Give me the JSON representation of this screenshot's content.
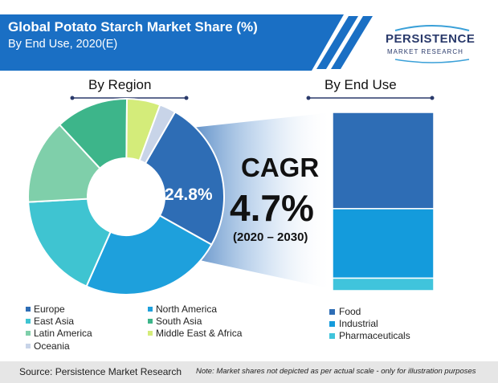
{
  "header": {
    "title": "Global Potato Starch Market Share (%)",
    "subtitle": "By End Use, 2020(E)"
  },
  "logo": {
    "name": "PERSISTENCE",
    "tagline": "MARKET RESEARCH"
  },
  "sections": {
    "region_label": "By Region",
    "enduse_label": "By End Use"
  },
  "cagr": {
    "title": "CAGR",
    "value": "4.7%",
    "period": "(2020 – 2030)"
  },
  "highlight_label": "24.8%",
  "footer": {
    "source": "Source: Persistence Market Research",
    "note": "Note: Market shares not depicted as per actual scale - only for illustration purposes"
  },
  "colors": {
    "banner": "#1a6fc4",
    "europe": "#2e6db5",
    "north_america": "#1ea0dc",
    "east_asia": "#3fc4d1",
    "south_asia": "#3db58a",
    "latin_america": "#7fcfaa",
    "middle_east_africa": "#d4ec7a",
    "oceania": "#c8d4e8",
    "food": "#2e6db5",
    "industrial": "#149bdc",
    "pharmaceuticals": "#40c4dc"
  },
  "chart_data": [
    {
      "type": "pie",
      "title": "By Region",
      "categories": [
        "Europe",
        "North America",
        "East Asia",
        "Latin America",
        "South Asia",
        "Middle East & Africa",
        "Oceania"
      ],
      "values": [
        24.8,
        23.5,
        17.5,
        14.0,
        12.0,
        5.5,
        2.7
      ],
      "legend": [
        "Europe",
        "North America",
        "East Asia",
        "South Asia",
        "Latin America",
        "Middle East & Africa",
        "Oceania"
      ],
      "legend_placement": "bottom"
    },
    {
      "type": "bar",
      "title": "By End Use",
      "stacked": true,
      "categories": [
        "Food",
        "Industrial",
        "Pharmaceuticals"
      ],
      "values": [
        54,
        39,
        7
      ],
      "legend_placement": "bottom"
    }
  ]
}
